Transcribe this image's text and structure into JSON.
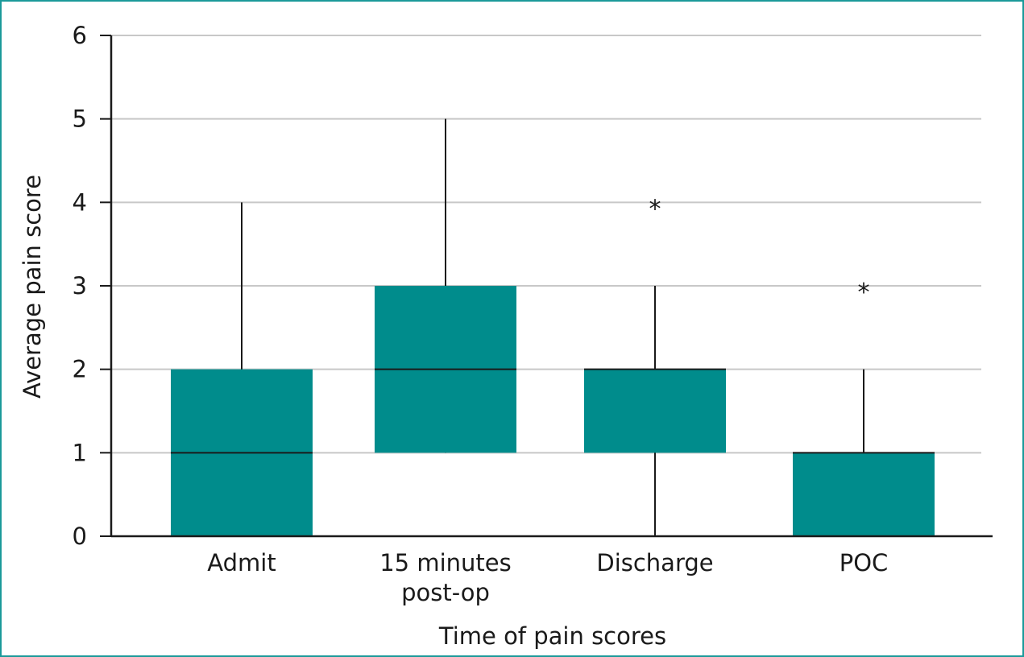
{
  "chart_data": {
    "type": "box",
    "categories": [
      "Admit",
      "15 minutes post-op",
      "Discharge",
      "POC"
    ],
    "category_lines": [
      [
        "Admit"
      ],
      [
        "15 minutes",
        "post-op"
      ],
      [
        "Discharge"
      ],
      [
        "POC"
      ]
    ],
    "boxes": [
      {
        "name": "Admit",
        "whisker_low": 0,
        "q1": 0,
        "median": 1,
        "q3": 2,
        "whisker_high": 4,
        "outliers": []
      },
      {
        "name": "15 minutes post-op",
        "whisker_low": 1,
        "q1": 1,
        "median": 2,
        "q3": 3,
        "whisker_high": 5,
        "outliers": []
      },
      {
        "name": "Discharge",
        "whisker_low": 0,
        "q1": 1,
        "median": 2,
        "q3": 2,
        "whisker_high": 3,
        "outliers": [
          4
        ]
      },
      {
        "name": "POC",
        "whisker_low": 0,
        "q1": 0,
        "median": 1,
        "q3": 1,
        "whisker_high": 2,
        "outliers": [
          3
        ]
      }
    ],
    "title": "",
    "xlabel": "Time of pain scores",
    "ylabel": "Average pain score",
    "ylim": [
      0,
      6
    ],
    "yticks": [
      "0",
      "1",
      "2",
      "3",
      "4",
      "5",
      "6"
    ],
    "outlier_marker": "*",
    "grid": true,
    "legend": "none",
    "colors": {
      "box": "#008c8c",
      "frame": "#1a9a9a",
      "grid": "#c8c8c8",
      "axis": "#1a1a1a",
      "whisker": "#1a1a1a"
    }
  }
}
